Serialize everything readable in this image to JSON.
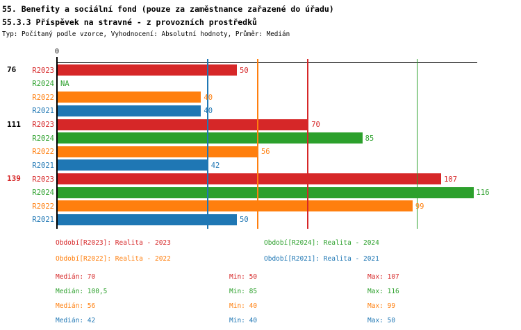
{
  "header": {
    "title": "55. Benefity a sociální fond (pouze za zaměstnance zařazené do úřadu)",
    "subtitle": "55.3.3 Příspěvek na stravné - z provozních prostředků",
    "meta": "Typ: Počítaný podle vzorce, Vyhodnocení: Absolutní hodnoty, Průměr: Medián"
  },
  "chart_data": {
    "type": "bar",
    "orientation": "horizontal",
    "x_axis": {
      "zero_label": "0",
      "min": 0,
      "max": 117,
      "grid": "median-lines-per-series"
    },
    "series": [
      {
        "id": "R2023",
        "label": "R2023",
        "color": "#d62728",
        "legend": "Období[R2023]: Realita - 2023",
        "median": 70,
        "min": 50,
        "max": 107
      },
      {
        "id": "R2024",
        "label": "R2024",
        "color": "#2ca02c",
        "legend": "Období[R2024]: Realita - 2024",
        "median": 100.5,
        "min": 85,
        "max": 116
      },
      {
        "id": "R2022",
        "label": "R2022",
        "color": "#ff7f0e",
        "legend": "Období[R2022]: Realita - 2022",
        "median": 56,
        "min": 40,
        "max": 99
      },
      {
        "id": "R2021",
        "label": "R2021",
        "color": "#1f77b4",
        "legend": "Období[R2021]: Realita - 2021",
        "median": 42,
        "min": 40,
        "max": 50
      }
    ],
    "row_order": [
      "R2023",
      "R2024",
      "R2022",
      "R2021"
    ],
    "median_gridlines": [
      {
        "series": "R2021",
        "value": 42
      },
      {
        "series": "R2022",
        "value": 56
      },
      {
        "series": "R2023",
        "value": 70
      },
      {
        "series": "R2024",
        "value": 100.5
      }
    ],
    "na_text": "NA",
    "groups": [
      {
        "label": "76",
        "label_color": "#000000",
        "values": {
          "R2023": 50,
          "R2024": null,
          "R2022": 40,
          "R2021": 40
        }
      },
      {
        "label": "111",
        "label_color": "#000000",
        "values": {
          "R2023": 70,
          "R2024": 85,
          "R2022": 56,
          "R2021": 42
        }
      },
      {
        "label": "139",
        "label_color": "#d62728",
        "values": {
          "R2023": 107,
          "R2024": 116,
          "R2022": 99,
          "R2021": 50
        }
      }
    ]
  },
  "legend": {
    "rows": [
      [
        {
          "series": "R2023",
          "text": "Období[R2023]: Realita - 2023"
        },
        {
          "series": "R2024",
          "text": "Období[R2024]: Realita - 2024"
        }
      ],
      [
        {
          "series": "R2022",
          "text": "Období[R2022]: Realita - 2022"
        },
        {
          "series": "R2021",
          "text": "Období[R2021]: Realita - 2021"
        }
      ]
    ]
  },
  "stats": {
    "rows": [
      {
        "series": "R2023",
        "median_label": "Medián: 70",
        "min_label": "Min: 50",
        "max_label": "Max: 107"
      },
      {
        "series": "R2024",
        "median_label": "Medián: 100,5",
        "min_label": "Min: 85",
        "max_label": "Max: 116"
      },
      {
        "series": "R2022",
        "median_label": "Medián: 56",
        "min_label": "Min: 40",
        "max_label": "Max: 99"
      },
      {
        "series": "R2021",
        "median_label": "Medián: 42",
        "min_label": "Min: 40",
        "max_label": "Max: 50"
      }
    ]
  }
}
